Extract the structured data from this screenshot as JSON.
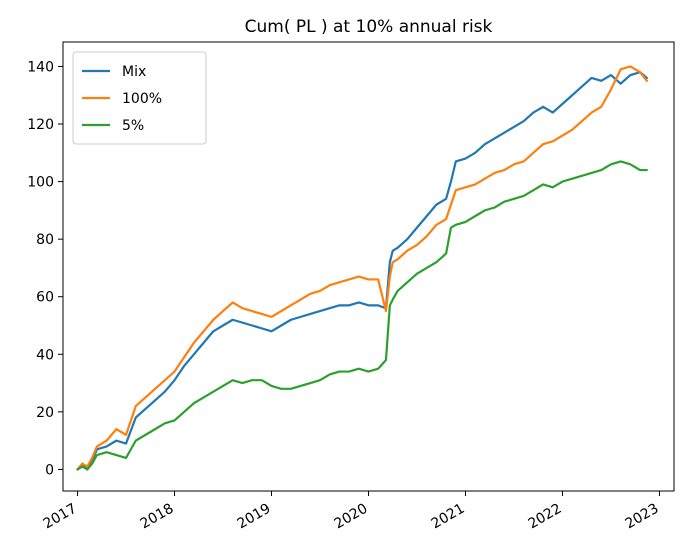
{
  "chart_data": {
    "type": "line",
    "title": "Cum( PL ) at 10% annual risk",
    "xlabel": "",
    "ylabel": "",
    "xlim": [
      2016.85,
      2023.15
    ],
    "ylim": [
      -7.5,
      148.5
    ],
    "xticks": [
      2017,
      2018,
      2019,
      2020,
      2021,
      2022,
      2023
    ],
    "xtick_labels": [
      "2017",
      "2018",
      "2019",
      "2020",
      "2021",
      "2022",
      "2023"
    ],
    "yticks": [
      0,
      20,
      40,
      60,
      80,
      100,
      120,
      140
    ],
    "ytick_labels": [
      "0",
      "20",
      "40",
      "60",
      "80",
      "100",
      "120",
      "140"
    ],
    "grid": false,
    "legend_position": "upper-left",
    "series": [
      {
        "name": "Mix",
        "color": "#1f77b4",
        "x": [
          2017.0,
          2017.05,
          2017.1,
          2017.15,
          2017.2,
          2017.3,
          2017.4,
          2017.5,
          2017.6,
          2017.7,
          2017.8,
          2017.9,
          2018.0,
          2018.1,
          2018.2,
          2018.3,
          2018.4,
          2018.5,
          2018.6,
          2018.7,
          2018.8,
          2018.9,
          2019.0,
          2019.1,
          2019.2,
          2019.3,
          2019.4,
          2019.5,
          2019.6,
          2019.7,
          2019.8,
          2019.9,
          2020.0,
          2020.1,
          2020.18,
          2020.22,
          2020.25,
          2020.3,
          2020.4,
          2020.5,
          2020.6,
          2020.7,
          2020.8,
          2020.85,
          2020.9,
          2021.0,
          2021.1,
          2021.2,
          2021.3,
          2021.4,
          2021.5,
          2021.6,
          2021.7,
          2021.8,
          2021.9,
          2022.0,
          2022.1,
          2022.2,
          2022.3,
          2022.4,
          2022.5,
          2022.6,
          2022.7,
          2022.8,
          2022.87
        ],
        "values": [
          0,
          2,
          0,
          3,
          7,
          8,
          10,
          9,
          18,
          21,
          24,
          27,
          31,
          36,
          40,
          44,
          48,
          50,
          52,
          51,
          50,
          49,
          48,
          50,
          52,
          53,
          54,
          55,
          56,
          57,
          57,
          58,
          57,
          57,
          56,
          72,
          76,
          77,
          80,
          84,
          88,
          92,
          94,
          100,
          107,
          108,
          110,
          113,
          115,
          117,
          119,
          121,
          124,
          126,
          124,
          127,
          130,
          133,
          136,
          135,
          137,
          134,
          137,
          138,
          136
        ]
      },
      {
        "name": "100%",
        "color": "#ff7f0e",
        "x": [
          2017.0,
          2017.05,
          2017.1,
          2017.15,
          2017.2,
          2017.3,
          2017.4,
          2017.5,
          2017.6,
          2017.7,
          2017.8,
          2017.9,
          2018.0,
          2018.1,
          2018.2,
          2018.3,
          2018.4,
          2018.5,
          2018.6,
          2018.7,
          2018.8,
          2018.9,
          2019.0,
          2019.1,
          2019.2,
          2019.3,
          2019.4,
          2019.5,
          2019.6,
          2019.7,
          2019.8,
          2019.9,
          2020.0,
          2020.1,
          2020.18,
          2020.22,
          2020.25,
          2020.3,
          2020.4,
          2020.5,
          2020.6,
          2020.7,
          2020.8,
          2020.85,
          2020.9,
          2021.0,
          2021.1,
          2021.2,
          2021.3,
          2021.4,
          2021.5,
          2021.6,
          2021.7,
          2021.8,
          2021.9,
          2022.0,
          2022.1,
          2022.2,
          2022.3,
          2022.4,
          2022.5,
          2022.6,
          2022.7,
          2022.8,
          2022.87
        ],
        "values": [
          0,
          2,
          1,
          4,
          8,
          10,
          14,
          12,
          22,
          25,
          28,
          31,
          34,
          39,
          44,
          48,
          52,
          55,
          58,
          56,
          55,
          54,
          53,
          55,
          57,
          59,
          61,
          62,
          64,
          65,
          66,
          67,
          66,
          66,
          55,
          67,
          72,
          73,
          76,
          78,
          81,
          85,
          87,
          92,
          97,
          98,
          99,
          101,
          103,
          104,
          106,
          107,
          110,
          113,
          114,
          116,
          118,
          121,
          124,
          126,
          132,
          139,
          140,
          138,
          135
        ]
      },
      {
        "name": "5%",
        "color": "#2ca02c",
        "x": [
          2017.0,
          2017.05,
          2017.1,
          2017.15,
          2017.2,
          2017.3,
          2017.4,
          2017.5,
          2017.6,
          2017.7,
          2017.8,
          2017.9,
          2018.0,
          2018.1,
          2018.2,
          2018.3,
          2018.4,
          2018.5,
          2018.6,
          2018.7,
          2018.8,
          2018.9,
          2019.0,
          2019.1,
          2019.2,
          2019.3,
          2019.4,
          2019.5,
          2019.6,
          2019.7,
          2019.8,
          2019.9,
          2020.0,
          2020.1,
          2020.18,
          2020.22,
          2020.25,
          2020.3,
          2020.4,
          2020.5,
          2020.6,
          2020.7,
          2020.8,
          2020.85,
          2020.9,
          2021.0,
          2021.1,
          2021.2,
          2021.3,
          2021.4,
          2021.5,
          2021.6,
          2021.7,
          2021.8,
          2021.9,
          2022.0,
          2022.1,
          2022.2,
          2022.3,
          2022.4,
          2022.5,
          2022.6,
          2022.7,
          2022.8,
          2022.87
        ],
        "values": [
          0,
          1,
          0,
          2,
          5,
          6,
          5,
          4,
          10,
          12,
          14,
          16,
          17,
          20,
          23,
          25,
          27,
          29,
          31,
          30,
          31,
          31,
          29,
          28,
          28,
          29,
          30,
          31,
          33,
          34,
          34,
          35,
          34,
          35,
          38,
          57,
          59,
          62,
          65,
          68,
          70,
          72,
          75,
          84,
          85,
          86,
          88,
          90,
          91,
          93,
          94,
          95,
          97,
          99,
          98,
          100,
          101,
          102,
          103,
          104,
          106,
          107,
          106,
          104,
          104
        ]
      }
    ]
  }
}
